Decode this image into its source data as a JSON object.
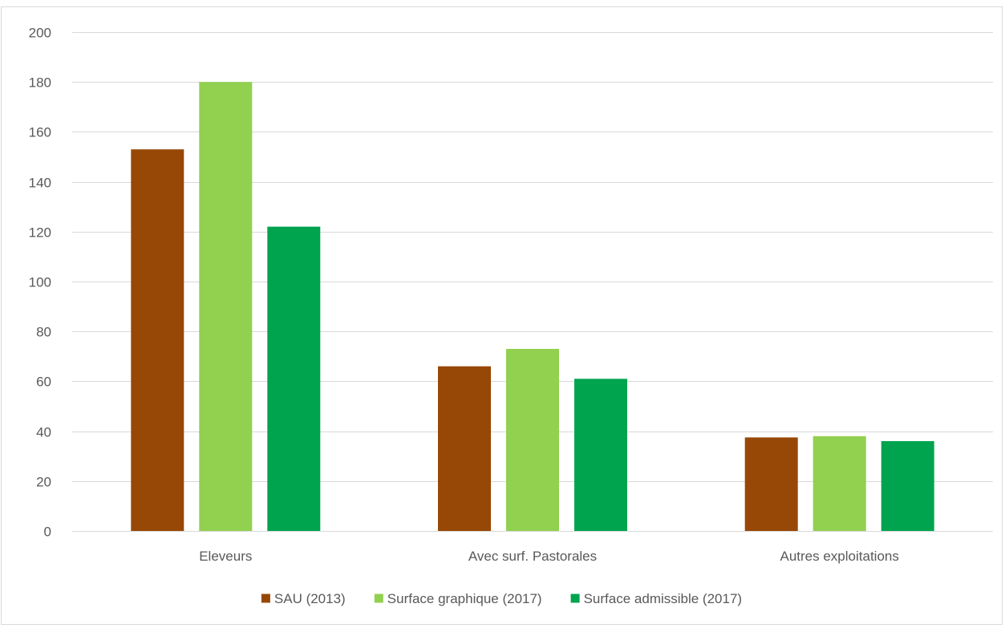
{
  "chart_data": {
    "type": "bar",
    "title": "",
    "xlabel": "",
    "ylabel": "",
    "categories": [
      "Eleveurs",
      "Avec surf. Pastorales",
      "Autres exploitations"
    ],
    "series": [
      {
        "name": "SAU (2013)",
        "values": [
          153,
          66,
          37.5
        ],
        "color": "#974806"
      },
      {
        "name": "Surface graphique (2017)",
        "values": [
          180,
          73,
          38
        ],
        "color": "#92d050"
      },
      {
        "name": "Surface admissible (2017)",
        "values": [
          122,
          61,
          36
        ],
        "color": "#00a44f"
      }
    ],
    "ylim": [
      0,
      200
    ],
    "yticks": [
      0,
      20,
      40,
      60,
      80,
      100,
      120,
      140,
      160,
      180,
      200
    ],
    "grid": true,
    "legend_position": "bottom",
    "gridline_color": "#d9d9d9",
    "text_color": "#595959"
  }
}
